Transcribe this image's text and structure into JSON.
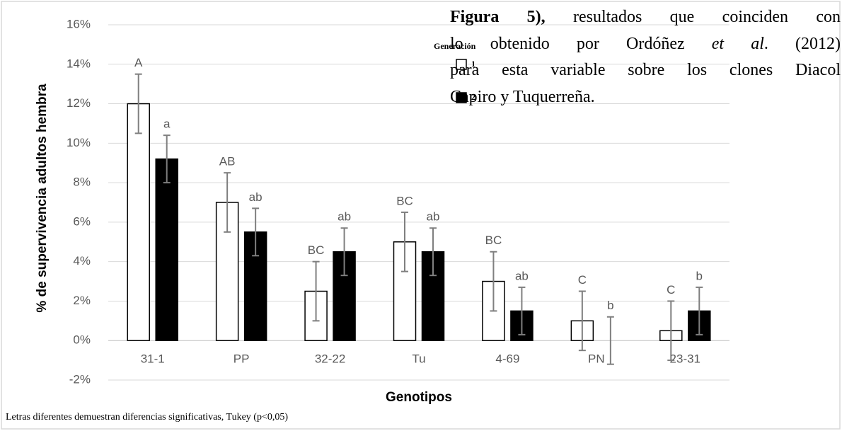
{
  "chart_data": {
    "type": "bar",
    "y_axis_label": "% de supervivencia adultos hembra",
    "x_axis_label": "Genotipos",
    "footnote": "Letras diferentes demuestran diferencias significativas,  Tukey (p<0,05)",
    "legend_title": "Generación",
    "categories": [
      "31-1",
      "PP",
      "32-22",
      "Tu",
      "4-69",
      "PN",
      "23-31"
    ],
    "series": [
      {
        "name": "1",
        "color": "#ffffff",
        "values": [
          12,
          7,
          2.5,
          5,
          3,
          1,
          0.5
        ],
        "errors": [
          1.5,
          1.5,
          1.5,
          1.5,
          1.5,
          1.5,
          1.5
        ],
        "letters": [
          "A",
          "AB",
          "BC",
          "BC",
          "BC",
          "C",
          "C"
        ]
      },
      {
        "name": "2",
        "color": "#000000",
        "values": [
          9.2,
          5.5,
          4.5,
          4.5,
          1.5,
          0,
          1.5
        ],
        "errors": [
          1.2,
          1.2,
          1.2,
          1.2,
          1.2,
          1.2,
          1.2
        ],
        "letters": [
          "a",
          "ab",
          "ab",
          "ab",
          "ab",
          "b",
          "b"
        ]
      }
    ],
    "ylim": [
      -2,
      16
    ],
    "yticks": [
      {
        "value": -2,
        "label": "-2%"
      },
      {
        "value": 0,
        "label": "0%"
      },
      {
        "value": 2,
        "label": "2%"
      },
      {
        "value": 4,
        "label": "4%"
      },
      {
        "value": 6,
        "label": "6%"
      },
      {
        "value": 8,
        "label": "8%"
      },
      {
        "value": 10,
        "label": "10%"
      },
      {
        "value": 12,
        "label": "12%"
      },
      {
        "value": 14,
        "label": "14%"
      },
      {
        "value": 16,
        "label": "16%"
      }
    ],
    "grid": true
  },
  "paragraph": {
    "lines": [
      [
        {
          "text": "Figura 5),",
          "style": "bold"
        },
        {
          "text": " resultados que coinciden con"
        }
      ],
      [
        {
          "text": "lo obtenido por Ordóñez "
        },
        {
          "text": "et al",
          "style": "italic"
        },
        {
          "text": ". (2012)"
        }
      ],
      [
        {
          "text": "para esta variable sobre los clones Diacol"
        }
      ],
      [
        {
          "text": "Capiro y Tuquerreña."
        }
      ]
    ]
  }
}
